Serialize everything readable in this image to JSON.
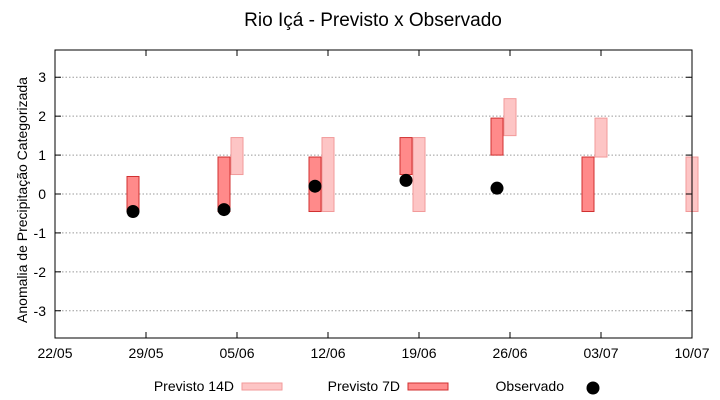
{
  "chart_data": {
    "type": "bar",
    "title": "Rio Içá - Previsto x Observado",
    "ylabel": "Anomalia de Precipitação Categorizada",
    "xlabel": "",
    "ylim": [
      -3.7,
      3.7
    ],
    "yticks": [
      -3,
      -2,
      -1,
      0,
      1,
      2,
      3
    ],
    "xticks": [
      "22/05",
      "29/05",
      "05/06",
      "12/06",
      "19/06",
      "26/06",
      "03/07",
      "10/07"
    ],
    "grid": true,
    "legend_position": "bottom",
    "colors": {
      "f14_fill": "#fdc5c5",
      "f14_stroke": "#f29a9a",
      "f7_fill": "#ff8a8a",
      "f7_stroke": "#d03030",
      "obs": "#000000",
      "grid": "#9a9a9a"
    },
    "series": [
      {
        "name": "Previsto 14D",
        "kind": "range",
        "points": [
          {
            "x": 14,
            "low": 0.5,
            "high": 1.45
          },
          {
            "x": 21,
            "low": -0.45,
            "high": 1.45
          },
          {
            "x": 28,
            "low": -0.45,
            "high": 1.45
          },
          {
            "x": 35,
            "low": 1.5,
            "high": 2.45
          },
          {
            "x": 42,
            "low": 0.95,
            "high": 1.95
          },
          {
            "x": 49,
            "low": -0.45,
            "high": 0.95
          }
        ]
      },
      {
        "name": "Previsto 7D",
        "kind": "range",
        "points": [
          {
            "x": 6,
            "low": -0.45,
            "high": 0.45
          },
          {
            "x": 13,
            "low": -0.45,
            "high": 0.95
          },
          {
            "x": 20,
            "low": -0.45,
            "high": 0.95
          },
          {
            "x": 27,
            "low": 0.5,
            "high": 1.45
          },
          {
            "x": 34,
            "low": 1.0,
            "high": 1.95
          },
          {
            "x": 41,
            "low": -0.45,
            "high": 0.95
          }
        ]
      },
      {
        "name": "Observado",
        "kind": "point",
        "points": [
          {
            "x": 6,
            "y": -0.45
          },
          {
            "x": 13,
            "y": -0.4
          },
          {
            "x": 20,
            "y": 0.2
          },
          {
            "x": 27,
            "y": 0.35
          },
          {
            "x": 34,
            "y": 0.15
          }
        ]
      }
    ]
  }
}
